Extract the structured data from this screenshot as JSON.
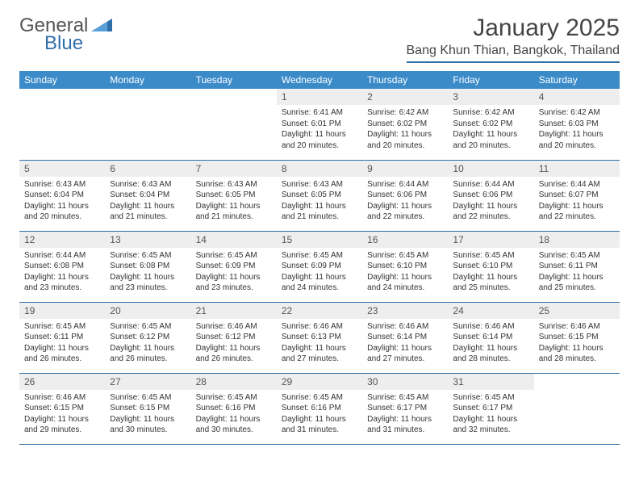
{
  "logo": {
    "text1": "General",
    "text2": "Blue"
  },
  "title": "January 2025",
  "location": "Bang Khun Thian, Bangkok, Thailand",
  "colors": {
    "header_bg": "#3b8bc9",
    "border": "#2f6fa8",
    "daynum_bg": "#eeeeee",
    "text": "#333333",
    "logo_gray": "#555555",
    "logo_blue": "#2f6fa8",
    "background": "#ffffff"
  },
  "weekdays": [
    "Sunday",
    "Monday",
    "Tuesday",
    "Wednesday",
    "Thursday",
    "Friday",
    "Saturday"
  ],
  "month": {
    "first_weekday": 3,
    "num_days": 31
  },
  "days": {
    "1": {
      "sunrise": "6:41 AM",
      "sunset": "6:01 PM",
      "daylight": "11 hours and 20 minutes."
    },
    "2": {
      "sunrise": "6:42 AM",
      "sunset": "6:02 PM",
      "daylight": "11 hours and 20 minutes."
    },
    "3": {
      "sunrise": "6:42 AM",
      "sunset": "6:02 PM",
      "daylight": "11 hours and 20 minutes."
    },
    "4": {
      "sunrise": "6:42 AM",
      "sunset": "6:03 PM",
      "daylight": "11 hours and 20 minutes."
    },
    "5": {
      "sunrise": "6:43 AM",
      "sunset": "6:04 PM",
      "daylight": "11 hours and 20 minutes."
    },
    "6": {
      "sunrise": "6:43 AM",
      "sunset": "6:04 PM",
      "daylight": "11 hours and 21 minutes."
    },
    "7": {
      "sunrise": "6:43 AM",
      "sunset": "6:05 PM",
      "daylight": "11 hours and 21 minutes."
    },
    "8": {
      "sunrise": "6:43 AM",
      "sunset": "6:05 PM",
      "daylight": "11 hours and 21 minutes."
    },
    "9": {
      "sunrise": "6:44 AM",
      "sunset": "6:06 PM",
      "daylight": "11 hours and 22 minutes."
    },
    "10": {
      "sunrise": "6:44 AM",
      "sunset": "6:06 PM",
      "daylight": "11 hours and 22 minutes."
    },
    "11": {
      "sunrise": "6:44 AM",
      "sunset": "6:07 PM",
      "daylight": "11 hours and 22 minutes."
    },
    "12": {
      "sunrise": "6:44 AM",
      "sunset": "6:08 PM",
      "daylight": "11 hours and 23 minutes."
    },
    "13": {
      "sunrise": "6:45 AM",
      "sunset": "6:08 PM",
      "daylight": "11 hours and 23 minutes."
    },
    "14": {
      "sunrise": "6:45 AM",
      "sunset": "6:09 PM",
      "daylight": "11 hours and 23 minutes."
    },
    "15": {
      "sunrise": "6:45 AM",
      "sunset": "6:09 PM",
      "daylight": "11 hours and 24 minutes."
    },
    "16": {
      "sunrise": "6:45 AM",
      "sunset": "6:10 PM",
      "daylight": "11 hours and 24 minutes."
    },
    "17": {
      "sunrise": "6:45 AM",
      "sunset": "6:10 PM",
      "daylight": "11 hours and 25 minutes."
    },
    "18": {
      "sunrise": "6:45 AM",
      "sunset": "6:11 PM",
      "daylight": "11 hours and 25 minutes."
    },
    "19": {
      "sunrise": "6:45 AM",
      "sunset": "6:11 PM",
      "daylight": "11 hours and 26 minutes."
    },
    "20": {
      "sunrise": "6:45 AM",
      "sunset": "6:12 PM",
      "daylight": "11 hours and 26 minutes."
    },
    "21": {
      "sunrise": "6:46 AM",
      "sunset": "6:12 PM",
      "daylight": "11 hours and 26 minutes."
    },
    "22": {
      "sunrise": "6:46 AM",
      "sunset": "6:13 PM",
      "daylight": "11 hours and 27 minutes."
    },
    "23": {
      "sunrise": "6:46 AM",
      "sunset": "6:14 PM",
      "daylight": "11 hours and 27 minutes."
    },
    "24": {
      "sunrise": "6:46 AM",
      "sunset": "6:14 PM",
      "daylight": "11 hours and 28 minutes."
    },
    "25": {
      "sunrise": "6:46 AM",
      "sunset": "6:15 PM",
      "daylight": "11 hours and 28 minutes."
    },
    "26": {
      "sunrise": "6:46 AM",
      "sunset": "6:15 PM",
      "daylight": "11 hours and 29 minutes."
    },
    "27": {
      "sunrise": "6:45 AM",
      "sunset": "6:15 PM",
      "daylight": "11 hours and 30 minutes."
    },
    "28": {
      "sunrise": "6:45 AM",
      "sunset": "6:16 PM",
      "daylight": "11 hours and 30 minutes."
    },
    "29": {
      "sunrise": "6:45 AM",
      "sunset": "6:16 PM",
      "daylight": "11 hours and 31 minutes."
    },
    "30": {
      "sunrise": "6:45 AM",
      "sunset": "6:17 PM",
      "daylight": "11 hours and 31 minutes."
    },
    "31": {
      "sunrise": "6:45 AM",
      "sunset": "6:17 PM",
      "daylight": "11 hours and 32 minutes."
    }
  },
  "labels": {
    "sunrise": "Sunrise:",
    "sunset": "Sunset:",
    "daylight": "Daylight:"
  }
}
